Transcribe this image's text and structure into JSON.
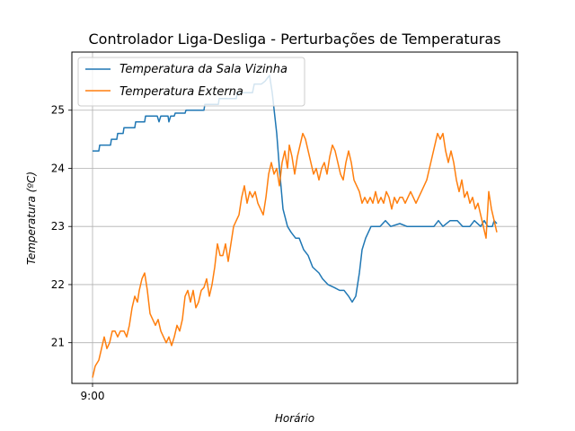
{
  "chart_data": {
    "type": "line",
    "title": "Controlador Liga-Desliga - Perturbações de Temperaturas",
    "xlabel": "Horário",
    "ylabel": "Temperatura (ºC)",
    "x_tick_label": "9:00",
    "y_ticks": [
      21,
      22,
      23,
      24,
      25
    ],
    "ylim": [
      20.3,
      26.0
    ],
    "grid": true,
    "legend_position": "top-left",
    "series": [
      {
        "name": "Temperatura da Sala Vizinha",
        "color": "#1f77b4",
        "points": [
          [
            0,
            24.3
          ],
          [
            7,
            24.3
          ],
          [
            8,
            24.4
          ],
          [
            20,
            24.4
          ],
          [
            21,
            24.5
          ],
          [
            27,
            24.5
          ],
          [
            28,
            24.6
          ],
          [
            34,
            24.6
          ],
          [
            35,
            24.7
          ],
          [
            47,
            24.7
          ],
          [
            48,
            24.8
          ],
          [
            58,
            24.8
          ],
          [
            59,
            24.9
          ],
          [
            72,
            24.9
          ],
          [
            74,
            24.8
          ],
          [
            76,
            24.9
          ],
          [
            84,
            24.9
          ],
          [
            85,
            24.8
          ],
          [
            87,
            24.9
          ],
          [
            91,
            24.9
          ],
          [
            92,
            24.95
          ],
          [
            103,
            24.95
          ],
          [
            104,
            25.0
          ],
          [
            124,
            25.0
          ],
          [
            125,
            25.1
          ],
          [
            140,
            25.1
          ],
          [
            141,
            25.2
          ],
          [
            160,
            25.2
          ],
          [
            161,
            25.3
          ],
          [
            178,
            25.3
          ],
          [
            180,
            25.45
          ],
          [
            188,
            25.45
          ],
          [
            192,
            25.5
          ],
          [
            197,
            25.6
          ],
          [
            200,
            25.3
          ],
          [
            205,
            24.6
          ],
          [
            208,
            24.0
          ],
          [
            212,
            23.3
          ],
          [
            217,
            23.0
          ],
          [
            221,
            22.9
          ],
          [
            226,
            22.8
          ],
          [
            230,
            22.8
          ],
          [
            235,
            22.6
          ],
          [
            240,
            22.5
          ],
          [
            245,
            22.3
          ],
          [
            252,
            22.2
          ],
          [
            256,
            22.1
          ],
          [
            262,
            22.0
          ],
          [
            269,
            21.95
          ],
          [
            275,
            21.9
          ],
          [
            280,
            21.9
          ],
          [
            285,
            21.8
          ],
          [
            289,
            21.7
          ],
          [
            293,
            21.8
          ],
          [
            297,
            22.2
          ],
          [
            300,
            22.6
          ],
          [
            304,
            22.8
          ],
          [
            307,
            22.9
          ],
          [
            310,
            23.0
          ],
          [
            320,
            23.0
          ],
          [
            326,
            23.1
          ],
          [
            332,
            23.0
          ],
          [
            342,
            23.05
          ],
          [
            350,
            23.0
          ],
          [
            380,
            23.0
          ],
          [
            385,
            23.1
          ],
          [
            390,
            23.0
          ],
          [
            398,
            23.1
          ],
          [
            406,
            23.1
          ],
          [
            412,
            23.0
          ],
          [
            420,
            23.0
          ],
          [
            425,
            23.1
          ],
          [
            432,
            23.0
          ],
          [
            436,
            23.1
          ],
          [
            440,
            23.0
          ],
          [
            445,
            23.0
          ],
          [
            447,
            23.1
          ],
          [
            450,
            23.05
          ]
        ]
      },
      {
        "name": "Temperatura Externa",
        "color": "#ff7f0e",
        "points": [
          [
            0,
            20.4
          ],
          [
            3,
            20.6
          ],
          [
            7,
            20.7
          ],
          [
            10,
            20.9
          ],
          [
            13,
            21.1
          ],
          [
            16,
            20.9
          ],
          [
            19,
            21.0
          ],
          [
            22,
            21.2
          ],
          [
            25,
            21.2
          ],
          [
            28,
            21.1
          ],
          [
            31,
            21.2
          ],
          [
            35,
            21.2
          ],
          [
            38,
            21.1
          ],
          [
            41,
            21.3
          ],
          [
            44,
            21.6
          ],
          [
            47,
            21.8
          ],
          [
            50,
            21.7
          ],
          [
            52,
            21.9
          ],
          [
            55,
            22.1
          ],
          [
            58,
            22.2
          ],
          [
            61,
            21.9
          ],
          [
            64,
            21.5
          ],
          [
            67,
            21.4
          ],
          [
            70,
            21.3
          ],
          [
            73,
            21.4
          ],
          [
            76,
            21.2
          ],
          [
            79,
            21.1
          ],
          [
            82,
            21.0
          ],
          [
            85,
            21.1
          ],
          [
            88,
            20.95
          ],
          [
            91,
            21.1
          ],
          [
            94,
            21.3
          ],
          [
            97,
            21.2
          ],
          [
            100,
            21.4
          ],
          [
            103,
            21.8
          ],
          [
            106,
            21.9
          ],
          [
            109,
            21.7
          ],
          [
            112,
            21.9
          ],
          [
            115,
            21.6
          ],
          [
            118,
            21.7
          ],
          [
            121,
            21.9
          ],
          [
            124,
            21.95
          ],
          [
            127,
            22.1
          ],
          [
            130,
            21.8
          ],
          [
            133,
            22.0
          ],
          [
            136,
            22.3
          ],
          [
            139,
            22.7
          ],
          [
            142,
            22.5
          ],
          [
            145,
            22.5
          ],
          [
            148,
            22.7
          ],
          [
            151,
            22.4
          ],
          [
            154,
            22.7
          ],
          [
            157,
            23.0
          ],
          [
            160,
            23.1
          ],
          [
            163,
            23.2
          ],
          [
            166,
            23.5
          ],
          [
            169,
            23.7
          ],
          [
            172,
            23.4
          ],
          [
            175,
            23.6
          ],
          [
            178,
            23.5
          ],
          [
            181,
            23.6
          ],
          [
            184,
            23.4
          ],
          [
            187,
            23.3
          ],
          [
            190,
            23.2
          ],
          [
            193,
            23.5
          ],
          [
            196,
            23.9
          ],
          [
            199,
            24.1
          ],
          [
            202,
            23.9
          ],
          [
            205,
            24.0
          ],
          [
            208,
            23.7
          ],
          [
            211,
            24.1
          ],
          [
            214,
            24.3
          ],
          [
            217,
            24.0
          ],
          [
            219,
            24.4
          ],
          [
            222,
            24.2
          ],
          [
            225,
            23.9
          ],
          [
            228,
            24.2
          ],
          [
            231,
            24.4
          ],
          [
            234,
            24.6
          ],
          [
            237,
            24.5
          ],
          [
            240,
            24.3
          ],
          [
            243,
            24.1
          ],
          [
            246,
            23.9
          ],
          [
            249,
            24.0
          ],
          [
            252,
            23.8
          ],
          [
            255,
            24.0
          ],
          [
            258,
            24.1
          ],
          [
            261,
            23.9
          ],
          [
            264,
            24.2
          ],
          [
            267,
            24.4
          ],
          [
            270,
            24.3
          ],
          [
            273,
            24.1
          ],
          [
            276,
            23.9
          ],
          [
            279,
            23.8
          ],
          [
            282,
            24.1
          ],
          [
            285,
            24.3
          ],
          [
            288,
            24.1
          ],
          [
            291,
            23.8
          ],
          [
            294,
            23.7
          ],
          [
            297,
            23.6
          ],
          [
            300,
            23.4
          ],
          [
            303,
            23.5
          ],
          [
            306,
            23.4
          ],
          [
            309,
            23.5
          ],
          [
            312,
            23.4
          ],
          [
            315,
            23.6
          ],
          [
            318,
            23.4
          ],
          [
            321,
            23.5
          ],
          [
            324,
            23.4
          ],
          [
            327,
            23.6
          ],
          [
            330,
            23.5
          ],
          [
            333,
            23.3
          ],
          [
            336,
            23.5
          ],
          [
            339,
            23.4
          ],
          [
            342,
            23.5
          ],
          [
            345,
            23.5
          ],
          [
            348,
            23.4
          ],
          [
            351,
            23.5
          ],
          [
            354,
            23.6
          ],
          [
            357,
            23.5
          ],
          [
            360,
            23.4
          ],
          [
            363,
            23.5
          ],
          [
            366,
            23.6
          ],
          [
            369,
            23.7
          ],
          [
            372,
            23.8
          ],
          [
            375,
            24.0
          ],
          [
            378,
            24.2
          ],
          [
            381,
            24.4
          ],
          [
            384,
            24.6
          ],
          [
            387,
            24.5
          ],
          [
            390,
            24.6
          ],
          [
            393,
            24.3
          ],
          [
            396,
            24.1
          ],
          [
            399,
            24.3
          ],
          [
            402,
            24.1
          ],
          [
            405,
            23.8
          ],
          [
            408,
            23.6
          ],
          [
            411,
            23.8
          ],
          [
            414,
            23.5
          ],
          [
            417,
            23.6
          ],
          [
            420,
            23.4
          ],
          [
            423,
            23.5
          ],
          [
            426,
            23.3
          ],
          [
            429,
            23.4
          ],
          [
            432,
            23.2
          ],
          [
            435,
            23.0
          ],
          [
            438,
            22.8
          ],
          [
            441,
            23.6
          ],
          [
            444,
            23.3
          ],
          [
            447,
            23.1
          ],
          [
            450,
            22.9
          ]
        ]
      }
    ]
  }
}
